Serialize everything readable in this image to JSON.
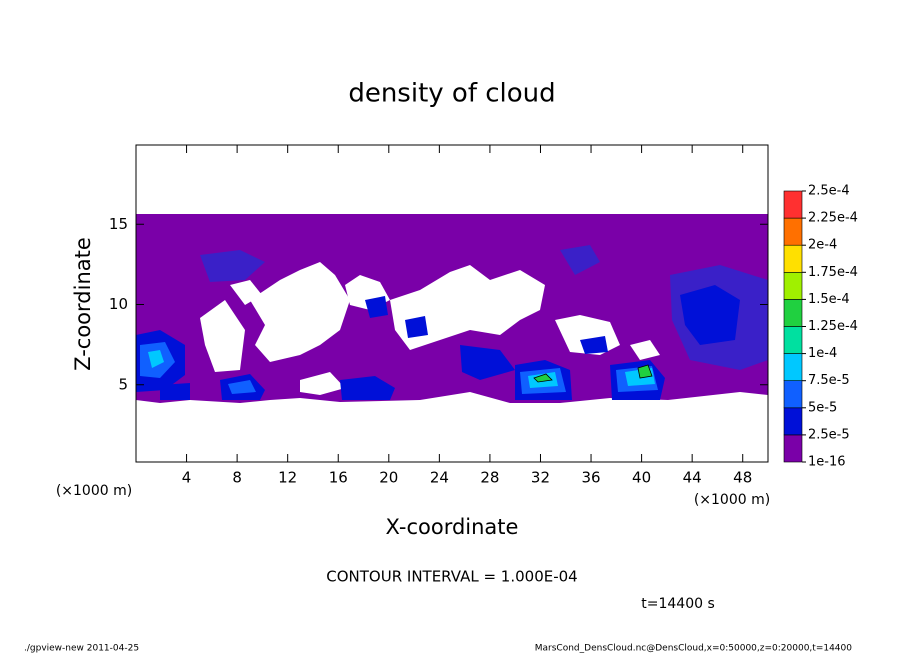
{
  "chart_data": {
    "type": "contour",
    "title": "density of cloud",
    "x_label": "X-coordinate",
    "y_label": "Z-coordinate",
    "x_unit": "(×1000 m)",
    "x_unit_right": "(×1000 m)",
    "xlim": [
      0,
      50
    ],
    "xticks": [
      4,
      8,
      12,
      16,
      20,
      24,
      28,
      32,
      36,
      40,
      44,
      48
    ],
    "ylim": [
      0,
      20
    ],
    "yticks": [
      5,
      10,
      15
    ],
    "colorbar": {
      "levels": [
        1e-16,
        {
          "value": 2.5e-05,
          "label": "2.5e-5"
        },
        {
          "value": 5e-05,
          "label": "5e-5"
        },
        {
          "value": 7.5e-05,
          "label": "7.5e-5"
        },
        {
          "value": 0.0001,
          "label": "1e-4"
        },
        {
          "value": 0.000125,
          "label": "1.25e-4"
        },
        {
          "value": 0.00015,
          "label": "1.5e-4"
        },
        {
          "value": 0.000175,
          "label": "1.75e-4"
        },
        {
          "value": 0.0002,
          "label": "2e-4"
        },
        {
          "value": 0.000225,
          "label": "2.25e-4"
        },
        {
          "value": 0.00025,
          "label": "2.5e-4"
        }
      ],
      "colors": [
        "#7a00a8",
        "#0010d8",
        "#1060ff",
        "#00c8ff",
        "#00e0a0",
        "#20d040",
        "#a0f000",
        "#ffe000",
        "#ff7000",
        "#ff3030"
      ]
    },
    "contour_interval": "CONTOUR INTERVAL = 1.000E-04",
    "time_label": "t=14400 s",
    "footer_left": "./gpview-new   2011-04-25",
    "footer_right": "MarsCond_DensCloud.nc@DensCloud,x=0:50000,z=0:20000,t=14400"
  }
}
